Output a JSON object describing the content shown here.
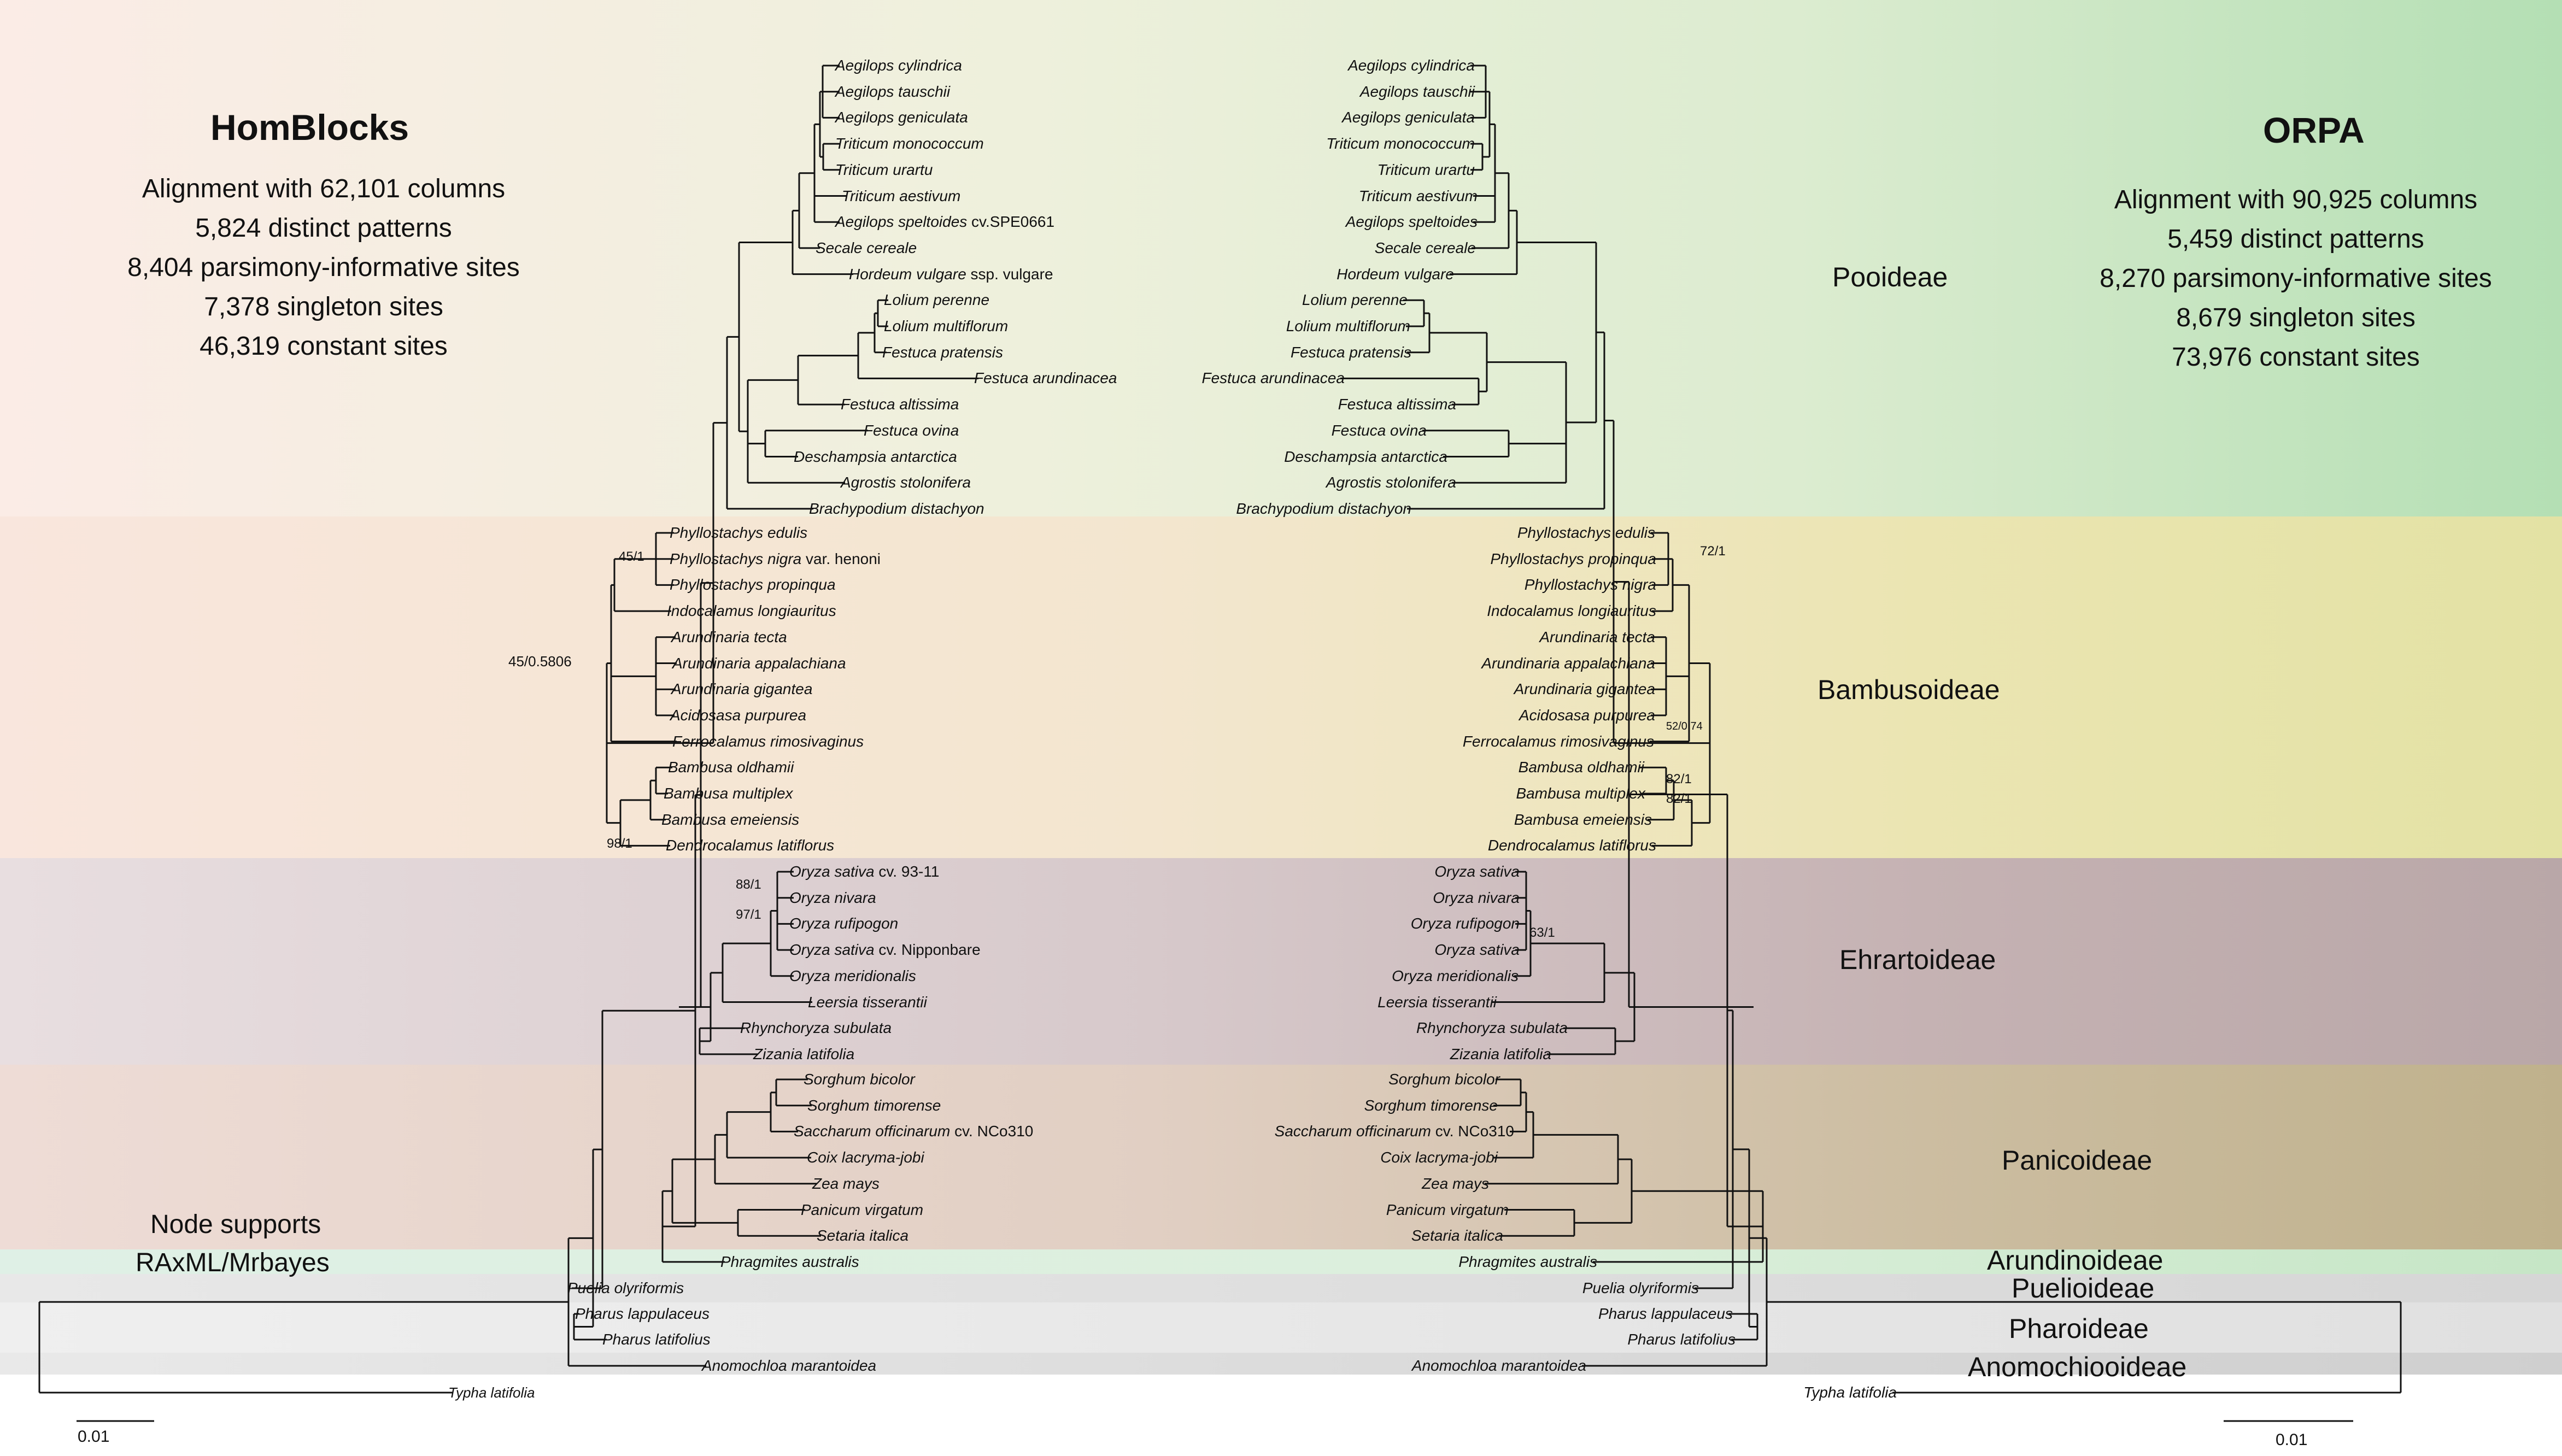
{
  "left_panel": {
    "title": "HomBlocks",
    "stats": [
      "Alignment with  62,101 columns",
      "5,824 distinct patterns",
      "8,404 parsimony-informative sites",
      "7,378 singleton sites",
      "46,319 constant sites"
    ]
  },
  "right_panel": {
    "title": "ORPA",
    "stats": [
      "Alignment with 90,925 columns",
      "5,459 distinct patterns",
      "8,270 parsimony-informative sites",
      "8,679 singleton sites",
      "73,976 constant sites"
    ]
  },
  "subfamilies": [
    "Pooideae",
    "Bambusoideae",
    "Ehrartoideae",
    "Panicoideae",
    "Arundinoideae",
    "Puelioideae",
    "Pharoideae",
    "Anomochiooideae"
  ],
  "node_support_label": [
    "Node supports",
    "RAxML/Mrbayes"
  ],
  "scale_left": "0.01",
  "scale_right": "0.01",
  "left_taxa": [
    [
      "Aegilops  cylindrica",
      ""
    ],
    [
      "Aegilops  tauschii",
      ""
    ],
    [
      "Aegilops  geniculata",
      ""
    ],
    [
      "Triticum  monococcum",
      ""
    ],
    [
      "Triticum  urartu",
      ""
    ],
    [
      "Triticum  aestivum",
      ""
    ],
    [
      "Aegilops  speltoides",
      "cv.SPE0661"
    ],
    [
      "Secale  cereale",
      ""
    ],
    [
      "Hordeum  vulgare",
      "ssp. vulgare"
    ],
    [
      "Lolium  perenne",
      ""
    ],
    [
      "Lolium  multiflorum",
      ""
    ],
    [
      "Festuca  pratensis",
      ""
    ],
    [
      "Festuca  arundinacea",
      ""
    ],
    [
      "Festuca  altissima",
      ""
    ],
    [
      "Festuca  ovina",
      ""
    ],
    [
      "Deschampsia  antarctica",
      ""
    ],
    [
      "Agrostis  stolonifera",
      ""
    ],
    [
      "Brachypodium  distachyon",
      ""
    ],
    [
      "Phyllostachys  edulis",
      ""
    ],
    [
      "Phyllostachys  nigra",
      "var. henoni"
    ],
    [
      "Phyllostachys  propinqua",
      ""
    ],
    [
      "Indocalamus  longiauritus",
      ""
    ],
    [
      "Arundinaria   tecta",
      ""
    ],
    [
      "Arundinaria  appalachiana",
      ""
    ],
    [
      "Arundinaria  gigantea",
      ""
    ],
    [
      "Acidosasa  purpurea",
      ""
    ],
    [
      "Ferrocalamus  rimosivaginus",
      ""
    ],
    [
      "Bambusa  oldhamii",
      ""
    ],
    [
      "Bambusa  multiplex",
      ""
    ],
    [
      "Bambusa  emeiensis",
      ""
    ],
    [
      "Dendrocalamus  latiflorus",
      ""
    ],
    [
      "Oryza  sativa",
      "cv. 93-11"
    ],
    [
      "Oryza  nivara",
      ""
    ],
    [
      "Oryza  rufipogon",
      ""
    ],
    [
      "Oryza  sativa",
      "cv. Nipponbare"
    ],
    [
      "Oryza  meridionalis",
      ""
    ],
    [
      "Leersia  tisserantii",
      ""
    ],
    [
      "Rhynchoryza  subulata",
      ""
    ],
    [
      "Zizania  latifolia",
      ""
    ],
    [
      "Sorghum  bicolor",
      ""
    ],
    [
      "Sorghum  timorense",
      ""
    ],
    [
      "Saccharum  officinarum",
      "cv. NCo310"
    ],
    [
      "Coix  lacryma-jobi",
      ""
    ],
    [
      "Zea  mays",
      ""
    ],
    [
      "Panicum  virgatum",
      ""
    ],
    [
      "Setaria  italica",
      ""
    ],
    [
      "Phragmites  australis",
      ""
    ],
    [
      "Puelia  olyriformis",
      ""
    ],
    [
      "Pharus  lappulaceus",
      ""
    ],
    [
      "Pharus  latifolius",
      ""
    ],
    [
      "Anomochloa  marantoidea",
      ""
    ],
    [
      "Typha  latifolia",
      ""
    ]
  ],
  "right_taxa": [
    [
      "Aegilops cylindrica",
      ""
    ],
    [
      "Aegilops tauschii",
      ""
    ],
    [
      "Aegilops geniculata",
      ""
    ],
    [
      "Triticum monococcum",
      ""
    ],
    [
      "Triticum urartu",
      ""
    ],
    [
      "Triticum aestivum",
      ""
    ],
    [
      "Aegilops speltoides",
      ""
    ],
    [
      "Secale cereale",
      ""
    ],
    [
      "Hordeum vulgare",
      ""
    ],
    [
      "Lolium perenne",
      ""
    ],
    [
      "Lolium multiflorum",
      ""
    ],
    [
      "Festuca pratensis",
      ""
    ],
    [
      "Festuca arundinacea",
      ""
    ],
    [
      "Festuca altissima",
      ""
    ],
    [
      "Festuca ovina",
      ""
    ],
    [
      "Deschampsia antarctica",
      ""
    ],
    [
      "Agrostis stolonifera",
      ""
    ],
    [
      "Brachypodium distachyon",
      ""
    ],
    [
      "Phyllostachys edulis",
      ""
    ],
    [
      "Phyllostachys propinqua",
      ""
    ],
    [
      "Phyllostachys nigra",
      ""
    ],
    [
      "Indocalamus longiauritus",
      ""
    ],
    [
      "Arundinaria tecta",
      ""
    ],
    [
      "Arundinaria appalachiana",
      ""
    ],
    [
      "Arundinaria gigantea",
      ""
    ],
    [
      "Acidosasa purpurea",
      ""
    ],
    [
      "Ferrocalamus rimosivaginus",
      ""
    ],
    [
      "Bambusa oldhamii",
      ""
    ],
    [
      "Bambusa multiplex",
      ""
    ],
    [
      "Bambusa emeiensis",
      ""
    ],
    [
      "Dendrocalamus latiflorus",
      ""
    ],
    [
      "Oryza sativa",
      ""
    ],
    [
      "Oryza nivara",
      ""
    ],
    [
      "Oryza rufipogon",
      ""
    ],
    [
      "Oryza sativa",
      ""
    ],
    [
      "Oryza meridionalis",
      ""
    ],
    [
      "Leersia tisserantii",
      ""
    ],
    [
      "Rhynchoryza subulata",
      ""
    ],
    [
      "Zizania latifolia",
      ""
    ],
    [
      "Sorghum bicolor",
      ""
    ],
    [
      "Sorghum timorense",
      ""
    ],
    [
      "Saccharum  officinarum",
      "cv. NCo310"
    ],
    [
      "Coix  lacryma-jobi",
      ""
    ],
    [
      "Zea mays",
      ""
    ],
    [
      "Panicum virgatum",
      ""
    ],
    [
      "Setaria italica",
      ""
    ],
    [
      "Phragmites australis",
      ""
    ],
    [
      "Puelia olyriformis",
      ""
    ],
    [
      "Pharus lappulaceus",
      ""
    ],
    [
      "Pharus latifolius",
      ""
    ],
    [
      "Anomochloa marantoidea",
      ""
    ],
    [
      "Typha latifolia",
      ""
    ]
  ],
  "left_supports": [
    "45/1",
    "45/0.5806",
    "98/1",
    "88/1",
    "97/1"
  ],
  "right_supports": [
    "72/1",
    "52/0.74",
    "82/1",
    "82/1",
    "63/1"
  ]
}
